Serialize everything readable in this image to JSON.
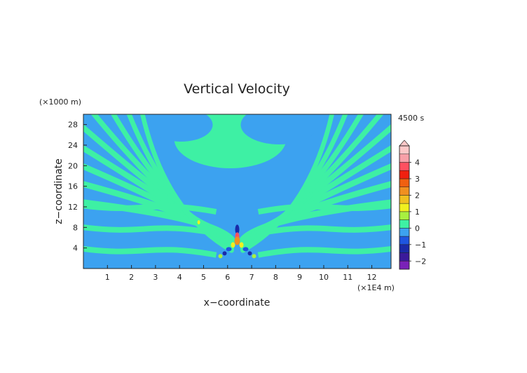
{
  "chart_data": {
    "type": "heatmap",
    "title": "Vertical Velocity",
    "time_label": "4500 s",
    "xlabel": "x−coordinate",
    "ylabel": "z−coordinate",
    "x_unit": "(×1E4 m)",
    "y_unit": "(×1000 m)",
    "xlim": [
      0,
      12.8
    ],
    "ylim": [
      0,
      30
    ],
    "x_ticks": [
      "1",
      "2",
      "3",
      "4",
      "5",
      "6",
      "7",
      "8",
      "9",
      "10",
      "11",
      "12"
    ],
    "y_ticks": [
      "4",
      "8",
      "12",
      "16",
      "20",
      "24",
      "28"
    ],
    "colorbar": {
      "labels": [
        "4",
        "3",
        "2",
        "1",
        "0",
        "−1",
        "−2"
      ],
      "levels": [
        {
          "value": -2.25,
          "color": "#7a22b8"
        },
        {
          "value": -1.75,
          "color": "#3a1a9a"
        },
        {
          "value": -1.25,
          "color": "#1a2aa8"
        },
        {
          "value": -0.75,
          "color": "#1e55e0"
        },
        {
          "value": -0.25,
          "color": "#3ca2f0"
        },
        {
          "value": 0.25,
          "color": "#3ef0a4"
        },
        {
          "value": 0.75,
          "color": "#a8f040"
        },
        {
          "value": 1.25,
          "color": "#f0f020"
        },
        {
          "value": 1.75,
          "color": "#f0c020"
        },
        {
          "value": 2.25,
          "color": "#f09020"
        },
        {
          "value": 2.75,
          "color": "#f06010"
        },
        {
          "value": 3.25,
          "color": "#f02010"
        },
        {
          "value": 3.75,
          "color": "#ff5060"
        },
        {
          "value": 4.25,
          "color": "#f8a0a8"
        },
        {
          "value": 4.75,
          "color": "#fcc8c8"
        }
      ]
    },
    "field": {
      "source_x": 6.4,
      "source_z": 6.5,
      "background_color": "#3ca2f0",
      "band_color": "#3ef0a4"
    }
  }
}
